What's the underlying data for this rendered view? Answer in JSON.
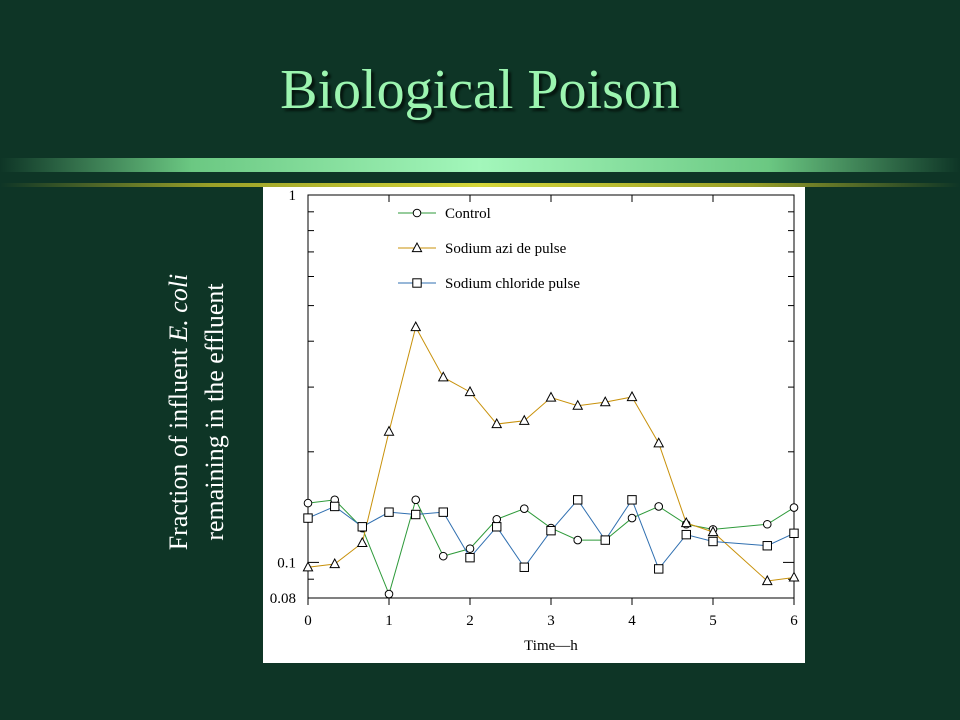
{
  "slide": {
    "title": "Biological Poison"
  },
  "chart_data": {
    "type": "line",
    "ylabel_line1": "Fraction of influent",
    "ylabel_italic": "E. coli",
    "ylabel_line2": "remaining in the effluent",
    "xlabel": "Time—h",
    "xlim": [
      0,
      6
    ],
    "ylim": [
      0.08,
      1
    ],
    "yscale": "log",
    "x_ticks": [
      "0",
      "1",
      "2",
      "3",
      "4",
      "5",
      "6"
    ],
    "y_ticks": [
      "1",
      "0.1",
      "0.08"
    ],
    "legend_position": "top-center",
    "colors": {
      "control": "#2e9a3a",
      "azide": "#c8910a",
      "chloride": "#2f6fb0",
      "marker": "#000000"
    },
    "series": [
      {
        "name": "Control",
        "marker": "circle",
        "x": [
          0,
          0.33,
          0.67,
          1,
          1.33,
          1.67,
          2,
          2.33,
          2.67,
          3,
          3.33,
          3.67,
          4,
          4.33,
          4.67,
          5,
          5.67,
          6
        ],
        "values": [
          0.145,
          0.148,
          0.124,
          0.082,
          0.148,
          0.104,
          0.109,
          0.131,
          0.14,
          0.124,
          0.115,
          0.115,
          0.132,
          0.142,
          0.127,
          0.123,
          0.127,
          0.141
        ]
      },
      {
        "name": "Sodium azi de pulse",
        "marker": "triangle",
        "x": [
          0,
          0.33,
          0.67,
          1,
          1.33,
          1.67,
          2,
          2.33,
          2.67,
          3,
          3.33,
          3.67,
          4,
          4.33,
          4.67,
          5,
          5.67,
          6
        ],
        "values": [
          0.097,
          0.099,
          0.113,
          0.227,
          0.437,
          0.319,
          0.291,
          0.238,
          0.243,
          0.281,
          0.267,
          0.273,
          0.282,
          0.211,
          0.128,
          0.121,
          0.089,
          0.091
        ]
      },
      {
        "name": "Sodium chloride pulse",
        "marker": "square",
        "x": [
          0,
          0.33,
          0.67,
          1,
          1.33,
          1.67,
          2,
          2.33,
          2.67,
          3,
          3.33,
          3.67,
          4,
          4.33,
          4.67,
          5,
          5.67,
          6
        ],
        "values": [
          0.132,
          0.142,
          0.125,
          0.137,
          0.135,
          0.137,
          0.103,
          0.125,
          0.097,
          0.122,
          0.148,
          0.115,
          0.148,
          0.096,
          0.119,
          0.114,
          0.111,
          0.12
        ]
      }
    ]
  }
}
